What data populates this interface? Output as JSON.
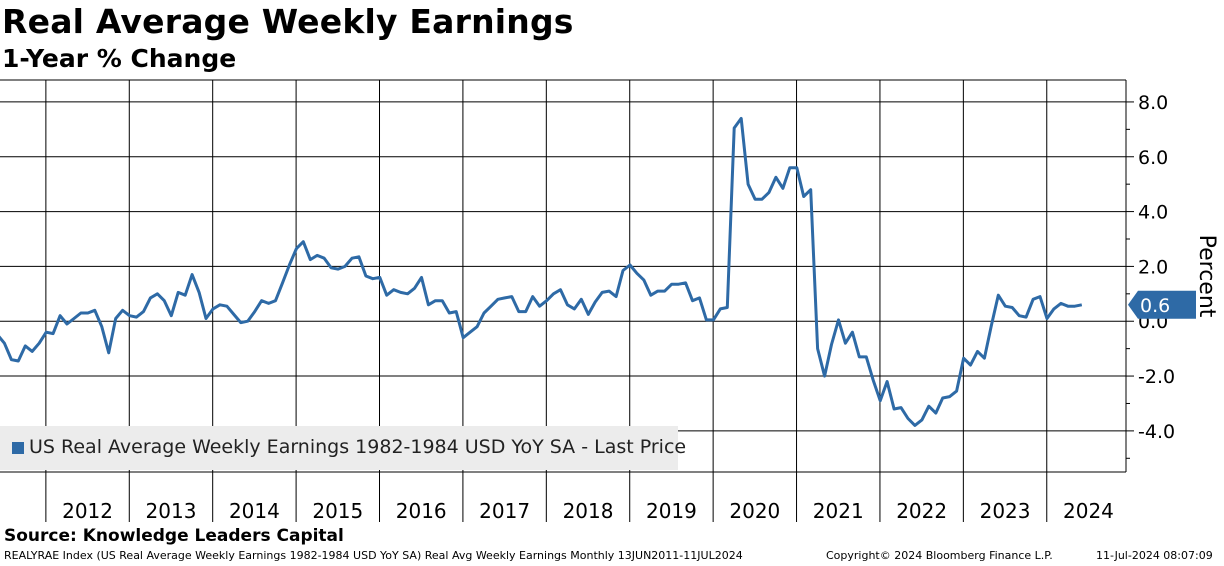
{
  "header": {
    "title": "Real Average Weekly Earnings",
    "subtitle": "1-Year % Change"
  },
  "source": "Source: Knowledge Leaders Capital",
  "footer": {
    "index": "REALYRAE Index (US Real Average Weekly Earnings 1982-1984 USD YoY SA) Real Avg Weekly Earnings  Monthly 13JUN2011-11JUL2024",
    "copyright": "Copyright© 2024 Bloomberg Finance L.P.",
    "timestamp": "11-Jul-2024 08:07:09"
  },
  "legend": {
    "label": "US Real Average Weekly Earnings 1982-1984 USD YoY SA - Last Price"
  },
  "colors": {
    "series": "#2e6aa6",
    "grid": "#000000"
  },
  "chart_data": {
    "type": "line",
    "title": "Real Average Weekly Earnings",
    "subtitle": "1-Year % Change",
    "ylabel": "Percent",
    "xlabel": "",
    "ylim": [
      -5.5,
      8.8
    ],
    "xlim": [
      2011.45,
      2024.95
    ],
    "y_ticks": [
      8,
      6,
      4,
      2,
      0,
      -2,
      -4
    ],
    "y_tick_labels": [
      "8.0",
      "6.0",
      "4.0",
      "2.0",
      "0.0",
      "-2.0",
      "-4.0"
    ],
    "x_year_labels": [
      "2012",
      "2013",
      "2014",
      "2015",
      "2016",
      "2017",
      "2018",
      "2019",
      "2020",
      "2021",
      "2022",
      "2023",
      "2024"
    ],
    "x_boundaries": [
      2012,
      2013,
      2014,
      2015,
      2016,
      2017,
      2018,
      2019,
      2020,
      2021,
      2022,
      2023,
      2024
    ],
    "grid": true,
    "last_value": 0.6,
    "last_value_label": "0.6",
    "series": [
      {
        "name": "US Real Average Weekly Earnings 1982-1984 USD YoY SA - Last Price",
        "x_start": 2011.42,
        "x_step": 0.08333,
        "values": [
          -0.5,
          -0.8,
          -1.4,
          -1.45,
          -0.9,
          -1.1,
          -0.8,
          -0.4,
          -0.45,
          0.2,
          -0.1,
          0.1,
          0.3,
          0.3,
          0.4,
          -0.2,
          -1.15,
          0.1,
          0.4,
          0.2,
          0.15,
          0.35,
          0.85,
          1.0,
          0.75,
          0.2,
          1.05,
          0.95,
          1.7,
          1.05,
          0.1,
          0.45,
          0.6,
          0.55,
          0.25,
          -0.05,
          0.0,
          0.35,
          0.75,
          0.65,
          0.75,
          1.4,
          2.05,
          2.65,
          2.9,
          2.25,
          2.4,
          2.3,
          1.95,
          1.9,
          2.0,
          2.3,
          2.35,
          1.65,
          1.55,
          1.6,
          0.95,
          1.15,
          1.05,
          1.0,
          1.2,
          1.6,
          0.6,
          0.75,
          0.75,
          0.3,
          0.35,
          -0.6,
          -0.4,
          -0.2,
          0.3,
          0.55,
          0.8,
          0.85,
          0.9,
          0.35,
          0.35,
          0.9,
          0.55,
          0.75,
          1.0,
          1.15,
          0.6,
          0.45,
          0.8,
          0.25,
          0.7,
          1.05,
          1.1,
          0.9,
          1.85,
          2.05,
          1.75,
          1.5,
          0.95,
          1.1,
          1.1,
          1.35,
          1.35,
          1.4,
          0.75,
          0.85,
          0.05,
          0.05,
          0.45,
          0.5,
          7.05,
          7.4,
          5.0,
          4.45,
          4.45,
          4.7,
          5.25,
          4.85,
          5.6,
          5.6,
          4.55,
          4.8,
          -1.0,
          -2.0,
          -0.85,
          0.05,
          -0.8,
          -0.4,
          -1.3,
          -1.3,
          -2.15,
          -2.9,
          -2.2,
          -3.2,
          -3.15,
          -3.55,
          -3.8,
          -3.6,
          -3.1,
          -3.35,
          -2.8,
          -2.75,
          -2.55,
          -1.35,
          -1.6,
          -1.1,
          -1.35,
          -0.15,
          0.95,
          0.55,
          0.5,
          0.2,
          0.15,
          0.8,
          0.9,
          0.1,
          0.45,
          0.65,
          0.55,
          0.55,
          0.6
        ]
      }
    ]
  }
}
